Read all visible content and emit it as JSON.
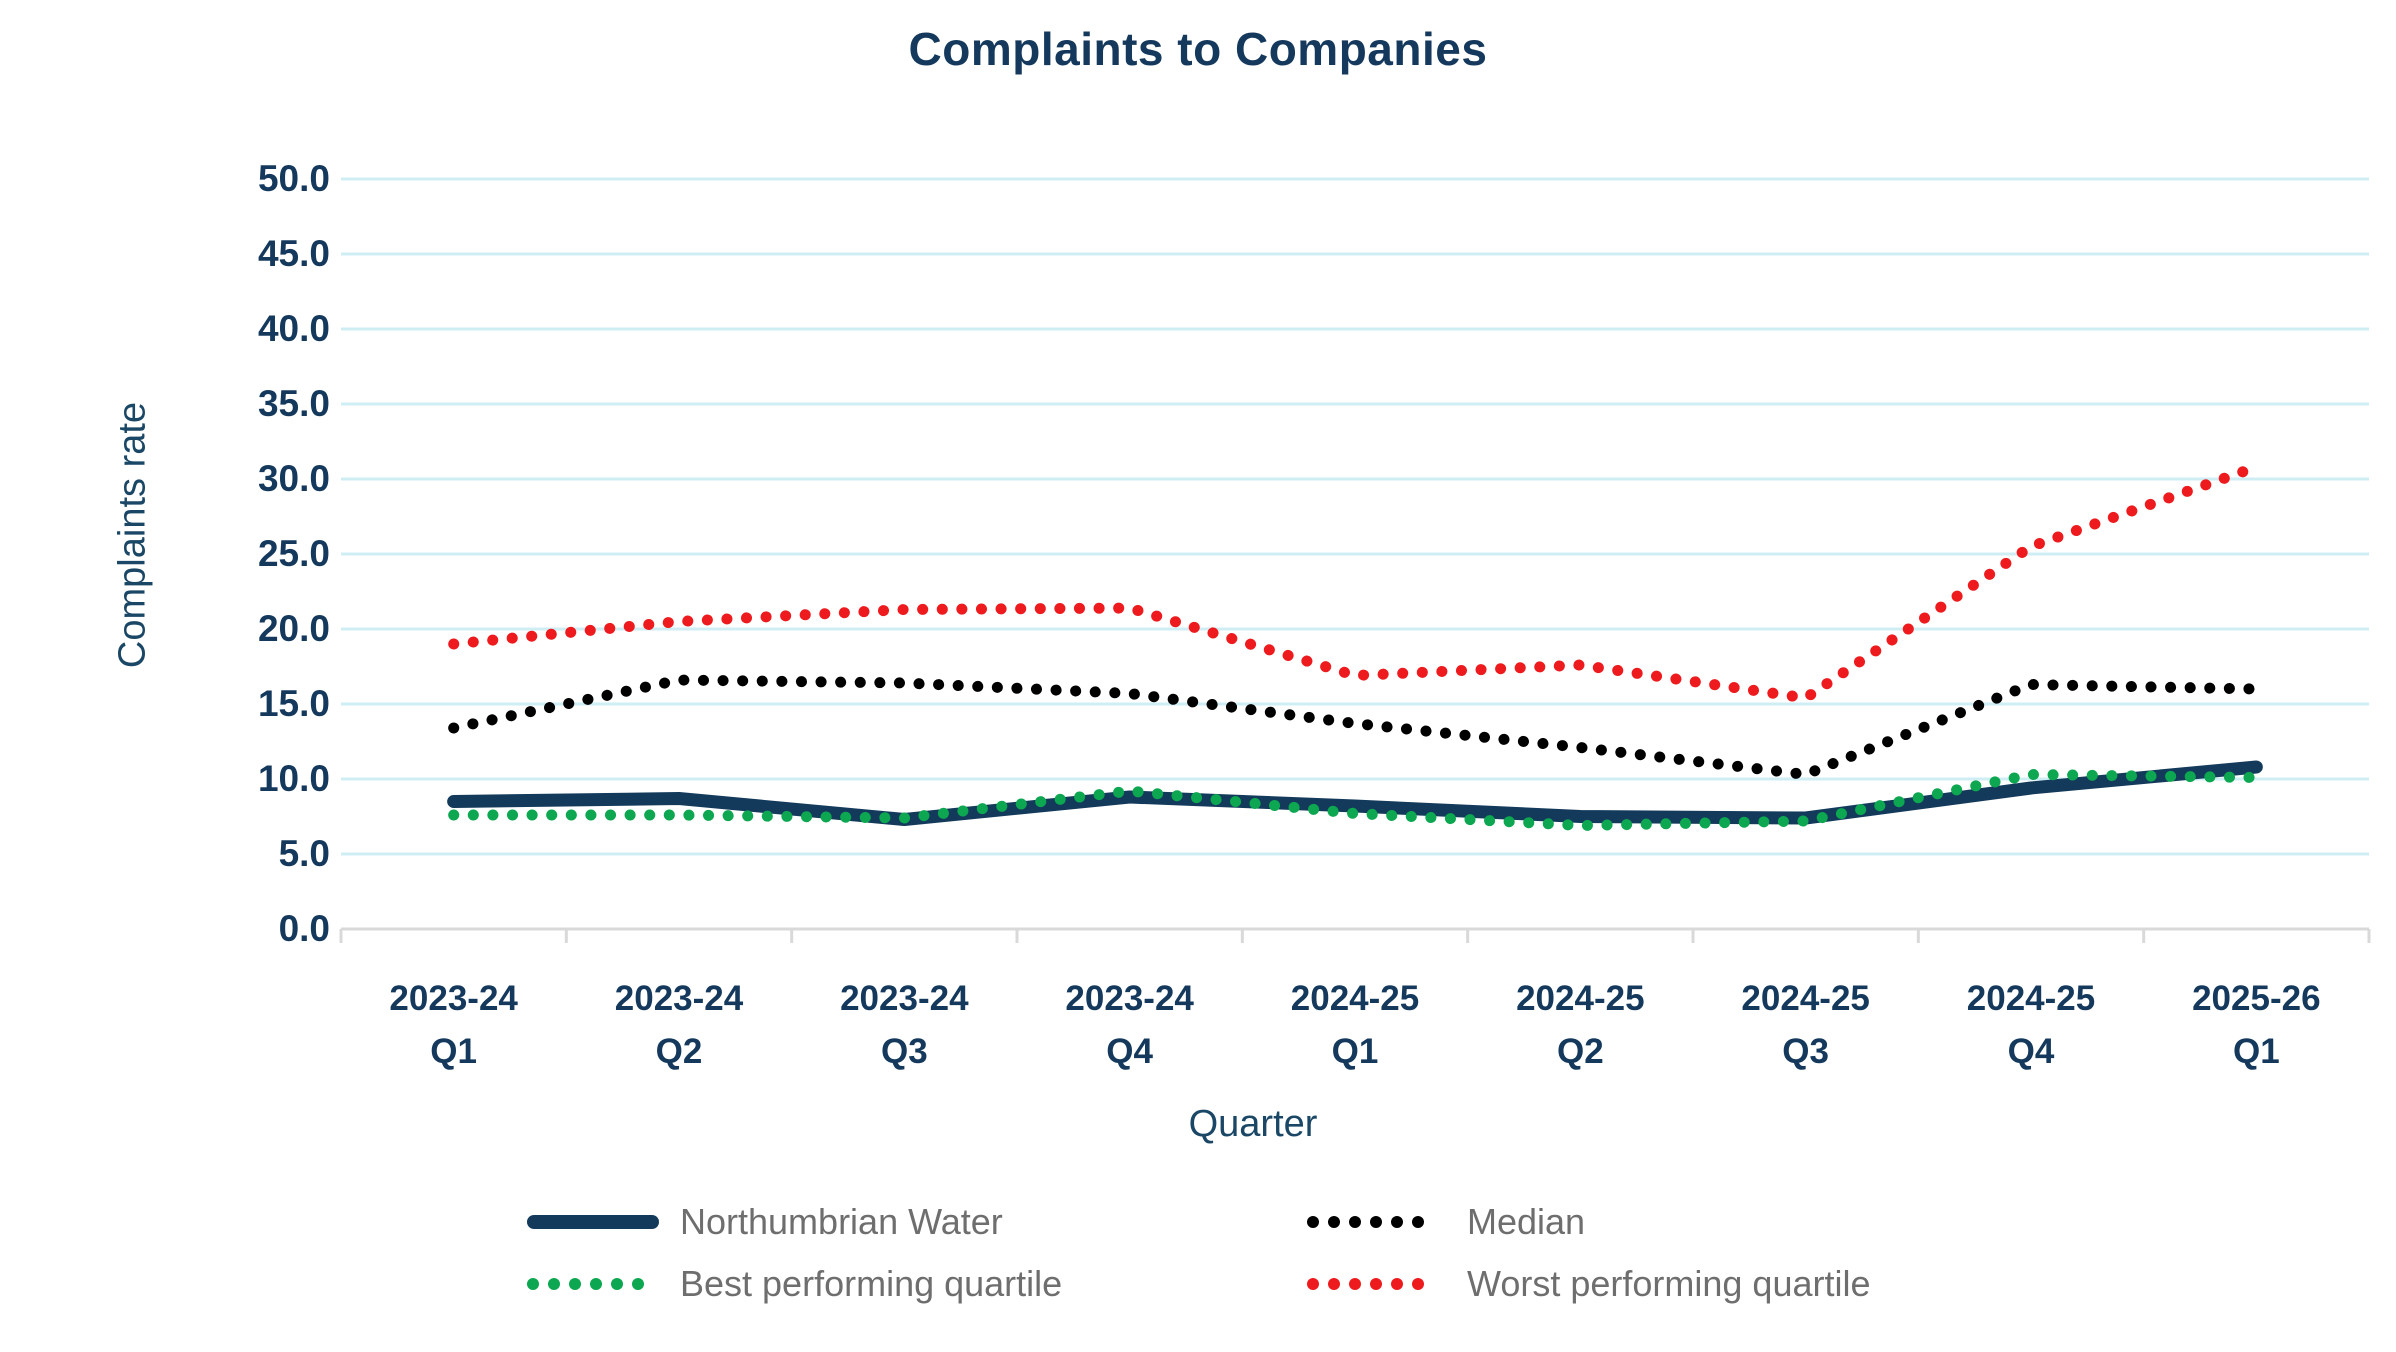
{
  "title": "Complaints to Companies",
  "chart_data": {
    "type": "line",
    "title": "Complaints to Companies",
    "xlabel": "Quarter",
    "ylabel": "Complaints rate",
    "ylim": [
      0,
      50
    ],
    "y_tick_step": 5,
    "y_tick_labels": [
      "0.0",
      "5.0",
      "10.0",
      "15.0",
      "20.0",
      "25.0",
      "30.0",
      "35.0",
      "40.0",
      "45.0",
      "50.0"
    ],
    "grid": true,
    "legend_position": "bottom",
    "categories": [
      "2023-24 Q1",
      "2023-24 Q2",
      "2023-24 Q3",
      "2023-24 Q4",
      "2024-25 Q1",
      "2024-25 Q2",
      "2024-25 Q3",
      "2024-25 Q4",
      "2025-26 Q1"
    ],
    "x_tick_lines": [
      [
        "2023-24",
        "Q1"
      ],
      [
        "2023-24",
        "Q2"
      ],
      [
        "2023-24",
        "Q3"
      ],
      [
        "2023-24",
        "Q4"
      ],
      [
        "2024-25",
        "Q1"
      ],
      [
        "2024-25",
        "Q2"
      ],
      [
        "2024-25",
        "Q3"
      ],
      [
        "2024-25",
        "Q4"
      ],
      [
        "2025-26",
        "Q1"
      ]
    ],
    "series": [
      {
        "name": "Northumbrian Water",
        "style": "solid",
        "color": "#133a5b",
        "values": [
          8.5,
          8.7,
          7.3,
          8.8,
          8.2,
          7.5,
          7.4,
          9.4,
          10.8
        ]
      },
      {
        "name": "Median",
        "style": "dotted",
        "color": "#000000",
        "values": [
          13.4,
          16.6,
          16.4,
          15.7,
          13.7,
          12.1,
          10.3,
          16.3,
          16.0
        ]
      },
      {
        "name": "Best performing quartile",
        "style": "dotted",
        "color": "#0ca750",
        "values": [
          7.6,
          7.6,
          7.4,
          9.2,
          7.7,
          6.9,
          7.2,
          10.3,
          10.1
        ]
      },
      {
        "name": "Worst performing quartile",
        "style": "dotted",
        "color": "#ee1b1e",
        "values": [
          19.0,
          20.5,
          21.3,
          21.4,
          16.9,
          17.6,
          15.4,
          25.5,
          30.8
        ]
      }
    ]
  },
  "legend": {
    "items": [
      {
        "label": "Northumbrian Water",
        "style": "solid",
        "color": "#133a5b"
      },
      {
        "label": "Median",
        "style": "dotted",
        "color": "#000000"
      },
      {
        "label": "Best performing quartile",
        "style": "dotted",
        "color": "#0ca750"
      },
      {
        "label": "Worst performing quartile",
        "style": "dotted",
        "color": "#ee1b1e"
      }
    ]
  },
  "colors": {
    "title": "#14395c",
    "axis_text": "#14395c",
    "gridline": "#cfeef4",
    "axis_line": "#d9d9d9",
    "legend_text": "#6e6e6e",
    "background": "#ffffff"
  }
}
